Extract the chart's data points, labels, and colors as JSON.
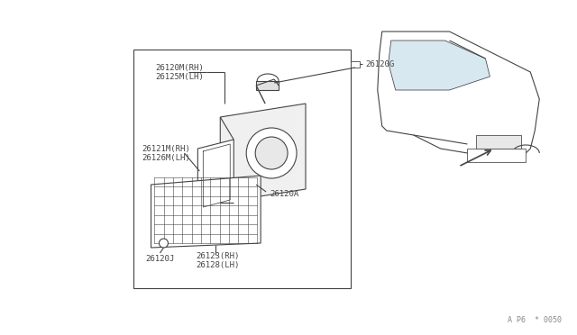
{
  "background_color": "#ffffff",
  "fig_width": 6.4,
  "fig_height": 3.72,
  "dpi": 100,
  "labels": {
    "26120M_RH": "26120M(RH)",
    "26125M_LH": "26125M(LH)",
    "26120G": "26120G",
    "26121M_RH": "26121M(RH)",
    "26126M_LH": "26126M(LH)",
    "26120A": "26120A",
    "26120J": "26120J",
    "26123_RH": "26123(RH)",
    "26128_LH": "26128(LH)",
    "watermark": "A P6  * 0050"
  },
  "font_size": 6.5,
  "font_family": "monospace",
  "text_color": "#444444",
  "line_color": "#444444",
  "line_width": 0.8
}
